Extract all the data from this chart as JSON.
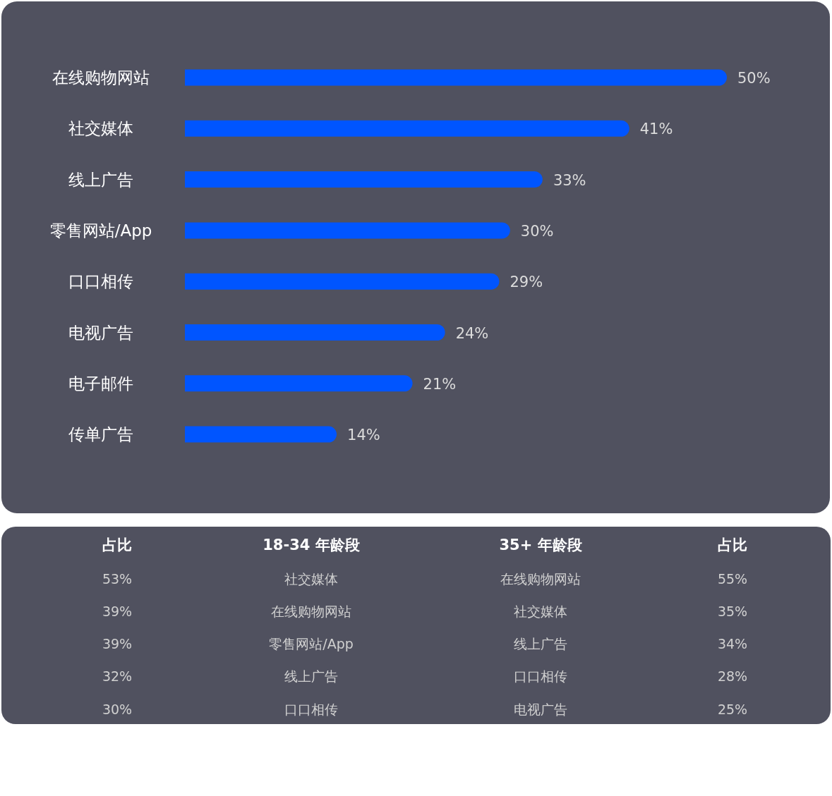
{
  "chart_data": [
    {
      "type": "bar",
      "orientation": "horizontal",
      "categories": [
        "在线购物网站",
        "社交媒体",
        "线上广告",
        "零售网站/App",
        "口口相传",
        "电视广告",
        "电子邮件",
        "传单广告"
      ],
      "values": [
        50,
        41,
        33,
        30,
        29,
        24,
        21,
        14
      ],
      "value_labels": [
        "50%",
        "41%",
        "33%",
        "30%",
        "29%",
        "24%",
        "21%",
        "14%"
      ],
      "color": "#0055ff"
    },
    {
      "type": "other",
      "annotations": [
        "占比",
        "18-34 年龄段",
        "35+ 年龄段",
        "占比",
        "53%",
        "社交媒体",
        "在线购物网站",
        "55%",
        "39%",
        "在线购物网站",
        "社交媒体",
        "35%",
        "39%",
        "零售网站/App",
        "线上广告",
        "34%",
        "32%",
        "线上广告",
        "口口相传",
        "28%",
        "30%",
        "口口相传",
        "电视广告",
        "25%"
      ]
    }
  ]
}
